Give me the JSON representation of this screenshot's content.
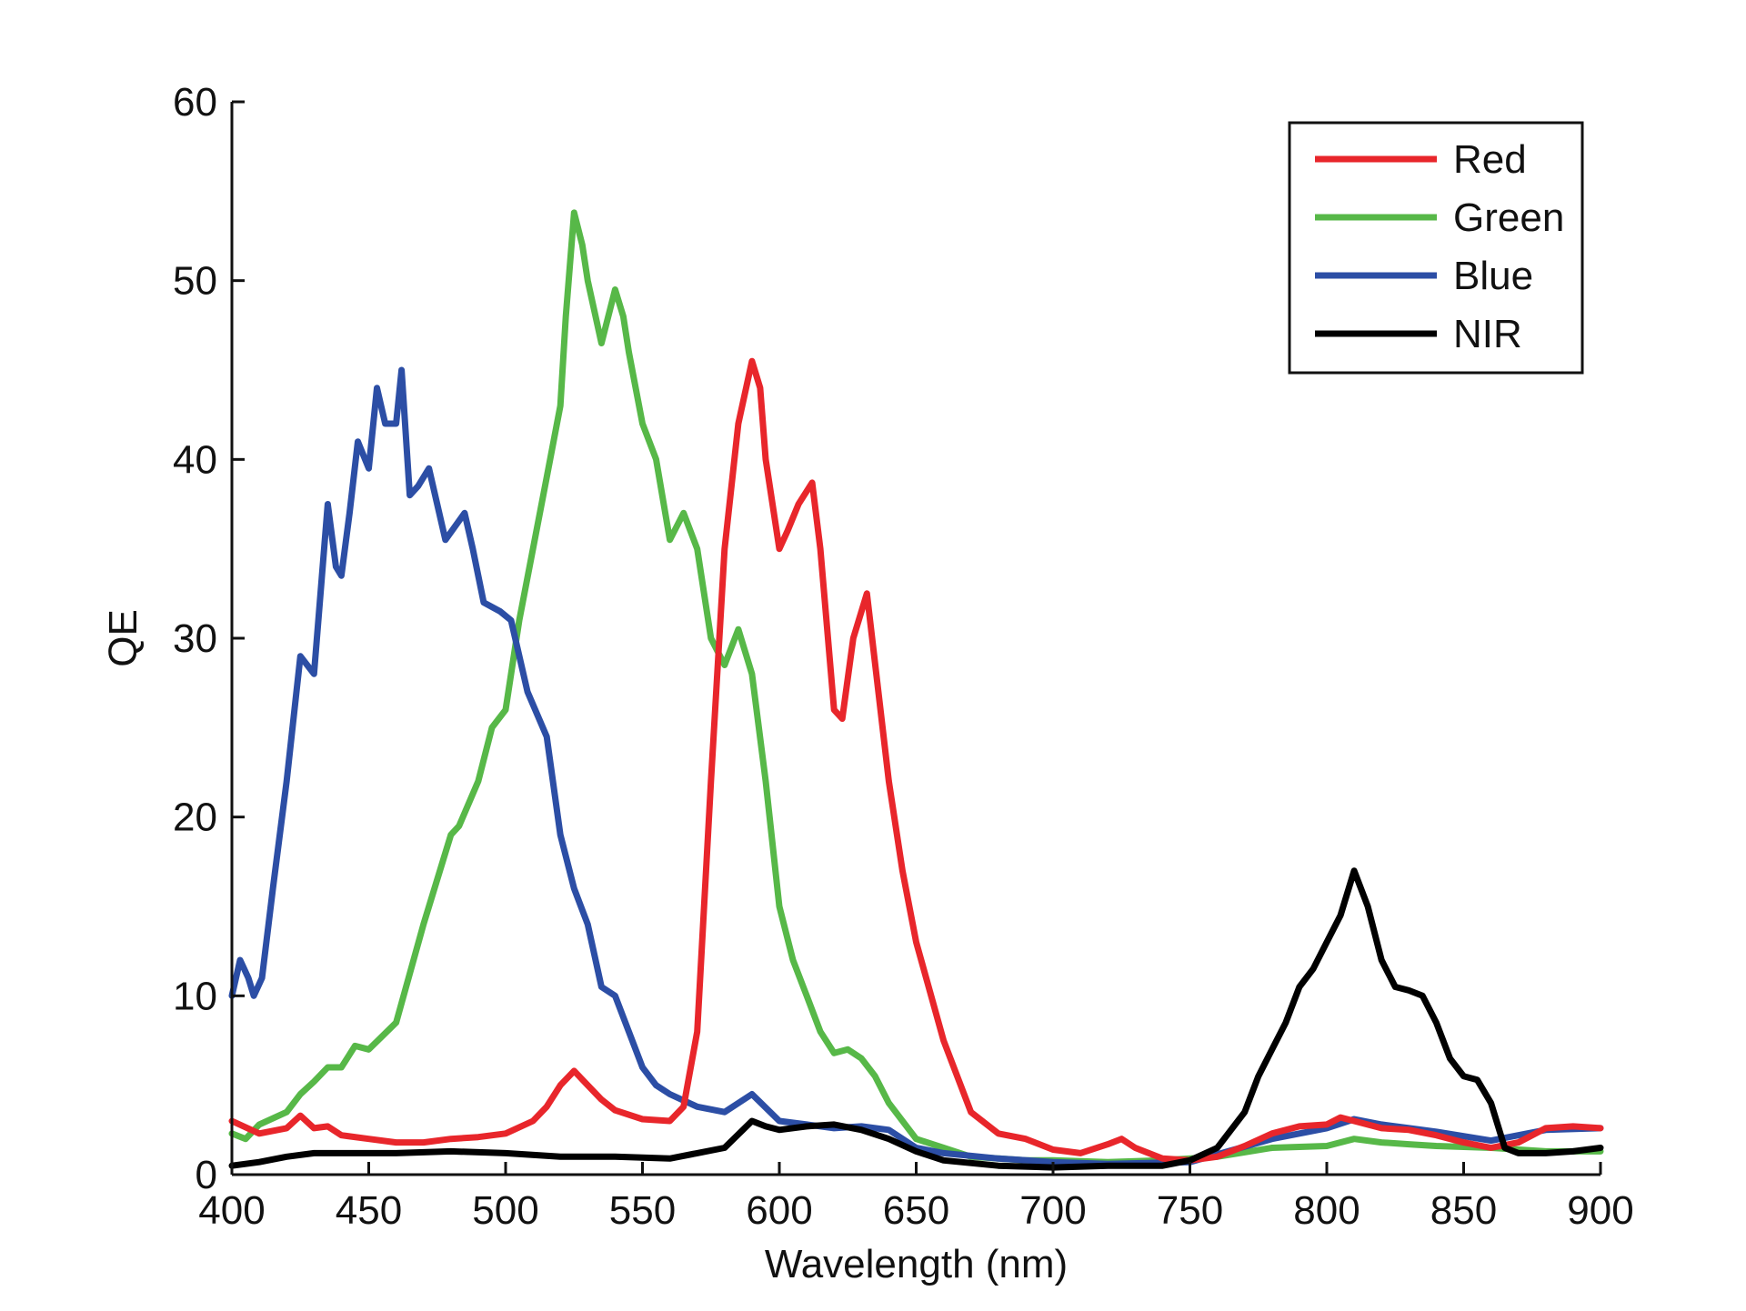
{
  "chart_data": {
    "type": "line",
    "title": "",
    "xlabel": "Wavelength (nm)",
    "ylabel": "QE",
    "xlim": [
      400,
      900
    ],
    "ylim": [
      0,
      60
    ],
    "xticks": [
      400,
      450,
      500,
      550,
      600,
      650,
      700,
      750,
      800,
      850,
      900
    ],
    "yticks": [
      0,
      10,
      20,
      30,
      40,
      50,
      60
    ],
    "legend_position": "top-right",
    "grid": false,
    "series": [
      {
        "name": "Red",
        "color": "#e8262b",
        "x": [
          400,
          410,
          420,
          425,
          430,
          435,
          440,
          450,
          460,
          470,
          480,
          490,
          500,
          510,
          515,
          520,
          525,
          530,
          535,
          540,
          550,
          560,
          565,
          570,
          575,
          580,
          585,
          590,
          593,
          595,
          600,
          603,
          607,
          612,
          615,
          620,
          623,
          627,
          632,
          640,
          645,
          650,
          660,
          670,
          680,
          690,
          700,
          710,
          720,
          725,
          730,
          740,
          750,
          760,
          770,
          780,
          790,
          800,
          805,
          810,
          820,
          830,
          840,
          850,
          860,
          870,
          880,
          890,
          900
        ],
        "values": [
          3.0,
          2.3,
          2.6,
          3.3,
          2.6,
          2.7,
          2.2,
          2.0,
          1.8,
          1.8,
          2.0,
          2.1,
          2.3,
          3.0,
          3.8,
          5.0,
          5.8,
          5.0,
          4.2,
          3.6,
          3.1,
          3.0,
          3.8,
          8.0,
          22.0,
          35.0,
          42.0,
          45.5,
          44.0,
          40.0,
          35.0,
          36.0,
          37.5,
          38.7,
          35.0,
          26.0,
          25.5,
          30.0,
          32.5,
          22.0,
          17.0,
          13.0,
          7.5,
          3.5,
          2.3,
          2.0,
          1.4,
          1.2,
          1.7,
          2.0,
          1.5,
          0.9,
          0.8,
          1.0,
          1.6,
          2.3,
          2.7,
          2.8,
          3.2,
          3.0,
          2.6,
          2.5,
          2.2,
          1.8,
          1.5,
          1.8,
          2.6,
          2.7,
          2.6
        ]
      },
      {
        "name": "Green",
        "color": "#57b848",
        "x": [
          400,
          405,
          410,
          420,
          425,
          430,
          435,
          440,
          445,
          450,
          460,
          470,
          480,
          483,
          490,
          495,
          500,
          505,
          510,
          515,
          520,
          522,
          525,
          528,
          530,
          535,
          540,
          543,
          545,
          550,
          555,
          560,
          565,
          570,
          575,
          580,
          585,
          590,
          595,
          600,
          605,
          610,
          615,
          620,
          625,
          630,
          635,
          640,
          650,
          660,
          670,
          680,
          690,
          700,
          720,
          740,
          760,
          780,
          800,
          810,
          820,
          830,
          840,
          860,
          880,
          900
        ],
        "values": [
          2.3,
          2.0,
          2.8,
          3.5,
          4.5,
          5.2,
          6.0,
          6.0,
          7.2,
          7.0,
          8.5,
          14.0,
          19.0,
          19.5,
          22.0,
          25.0,
          26.0,
          31.0,
          35.0,
          39.0,
          43.0,
          48.0,
          53.8,
          52.0,
          50.0,
          46.5,
          49.5,
          48.0,
          46.0,
          42.0,
          40.0,
          35.5,
          37.0,
          35.0,
          30.0,
          28.5,
          30.5,
          28.0,
          22.0,
          15.0,
          12.0,
          10.0,
          8.0,
          6.8,
          7.0,
          6.5,
          5.5,
          4.0,
          2.0,
          1.5,
          1.0,
          0.9,
          0.8,
          0.8,
          0.7,
          0.8,
          1.0,
          1.5,
          1.6,
          2.0,
          1.8,
          1.7,
          1.6,
          1.5,
          1.3,
          1.3
        ]
      },
      {
        "name": "Blue",
        "color": "#2c4ea5",
        "x": [
          400,
          403,
          406,
          408,
          411,
          415,
          420,
          425,
          430,
          435,
          438,
          440,
          443,
          446,
          450,
          453,
          456,
          460,
          462,
          465,
          468,
          472,
          478,
          485,
          488,
          492,
          498,
          502,
          508,
          515,
          520,
          525,
          530,
          535,
          540,
          545,
          550,
          555,
          560,
          570,
          580,
          590,
          600,
          610,
          620,
          630,
          640,
          650,
          660,
          680,
          700,
          720,
          750,
          780,
          800,
          810,
          820,
          830,
          840,
          860,
          880,
          900
        ],
        "values": [
          10.0,
          12.0,
          11.0,
          10.0,
          11.0,
          16.0,
          22.0,
          29.0,
          28.0,
          37.5,
          34.0,
          33.5,
          37.0,
          41.0,
          39.5,
          44.0,
          42.0,
          42.0,
          45.0,
          38.0,
          38.5,
          39.5,
          35.5,
          37.0,
          35.0,
          32.0,
          31.5,
          31.0,
          27.0,
          24.5,
          19.0,
          16.0,
          14.0,
          10.5,
          10.0,
          8.0,
          6.0,
          5.0,
          4.5,
          3.8,
          3.5,
          4.5,
          3.0,
          2.8,
          2.6,
          2.7,
          2.5,
          1.5,
          1.2,
          0.9,
          0.7,
          0.6,
          0.7,
          2.0,
          2.6,
          3.1,
          2.8,
          2.6,
          2.4,
          1.9,
          2.5,
          2.6
        ]
      },
      {
        "name": "NIR",
        "color": "#000000",
        "x": [
          400,
          410,
          420,
          430,
          440,
          450,
          460,
          480,
          500,
          520,
          540,
          560,
          570,
          580,
          590,
          595,
          600,
          610,
          620,
          630,
          640,
          650,
          660,
          680,
          700,
          720,
          740,
          750,
          760,
          770,
          775,
          780,
          785,
          790,
          795,
          800,
          805,
          810,
          815,
          820,
          825,
          830,
          835,
          840,
          845,
          850,
          855,
          860,
          865,
          870,
          880,
          890,
          900
        ],
        "values": [
          0.5,
          0.7,
          1.0,
          1.2,
          1.2,
          1.2,
          1.2,
          1.3,
          1.2,
          1.0,
          1.0,
          0.9,
          1.2,
          1.5,
          3.0,
          2.7,
          2.5,
          2.7,
          2.8,
          2.5,
          2.0,
          1.3,
          0.8,
          0.5,
          0.4,
          0.5,
          0.5,
          0.8,
          1.5,
          3.5,
          5.5,
          7.0,
          8.5,
          10.5,
          11.5,
          13.0,
          14.5,
          17.0,
          15.0,
          12.0,
          10.5,
          10.3,
          10.0,
          8.5,
          6.5,
          5.5,
          5.3,
          4.0,
          1.5,
          1.2,
          1.2,
          1.3,
          1.5
        ]
      }
    ]
  }
}
